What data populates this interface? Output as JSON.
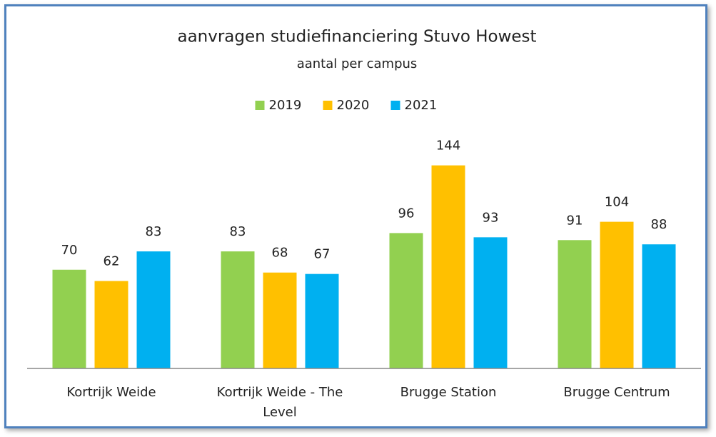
{
  "chart_data": {
    "type": "bar",
    "title": "aanvragen studiefinanciering Stuvo Howest",
    "subtitle": "aantal per campus",
    "categories": [
      "Kortrijk Weide",
      "Kortrijk Weide - The Level",
      "Brugge Station",
      "Brugge Centrum"
    ],
    "series": [
      {
        "name": "2019",
        "color": "#92d050",
        "values": [
          70,
          83,
          96,
          91
        ]
      },
      {
        "name": "2020",
        "color": "#ffc000",
        "values": [
          62,
          68,
          144,
          104
        ]
      },
      {
        "name": "2021",
        "color": "#00b0f0",
        "values": [
          83,
          67,
          93,
          88
        ]
      }
    ],
    "ylim": [
      0,
      160
    ],
    "legend": "top"
  }
}
